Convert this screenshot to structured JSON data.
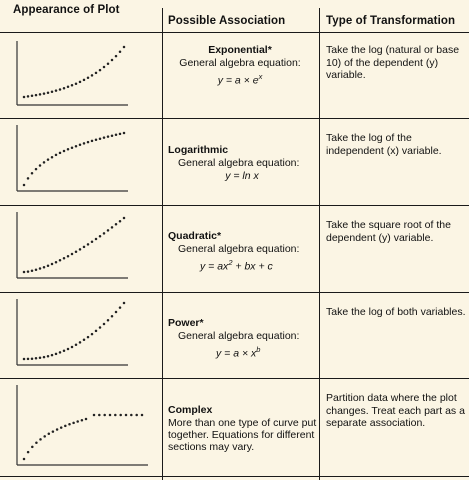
{
  "headers": {
    "plot": "Appearance of Plot",
    "association": "Possible Association",
    "transformation": "Type of Transformation"
  },
  "rows": [
    {
      "shape": "exponential",
      "name": "Exponential*",
      "eq_label": "General algebra equation:",
      "eq_prefix": "y = a × e",
      "eq_sup": "x",
      "eq_suffix": "",
      "transformation": "Take the log (natural or base 10) of the dependent (y) variable."
    },
    {
      "shape": "logarithmic",
      "name": "Logarithmic",
      "eq_label": "General algebra equation:",
      "eq_prefix": "y = ln x",
      "eq_sup": "",
      "eq_suffix": "",
      "transformation": "Take the log of the independent (x) variable."
    },
    {
      "shape": "quadratic",
      "name": "Quadratic*",
      "eq_label": "General algebra equation:",
      "eq_prefix": "y = ax",
      "eq_sup": "2",
      "eq_suffix": " + bx + c",
      "transformation": "Take the square root of the dependent (y) variable."
    },
    {
      "shape": "power",
      "name": "Power*",
      "eq_label": "General algebra equation:",
      "eq_prefix": "y = a × x",
      "eq_sup": "b",
      "eq_suffix": "",
      "transformation": "Take the log of both variables."
    },
    {
      "shape": "complex",
      "name": "Complex",
      "description": "More than one type of curve put together. Equations for different sections may vary.",
      "transformation": "Partition data where the plot changes. Treat each part as a separate association."
    }
  ]
}
